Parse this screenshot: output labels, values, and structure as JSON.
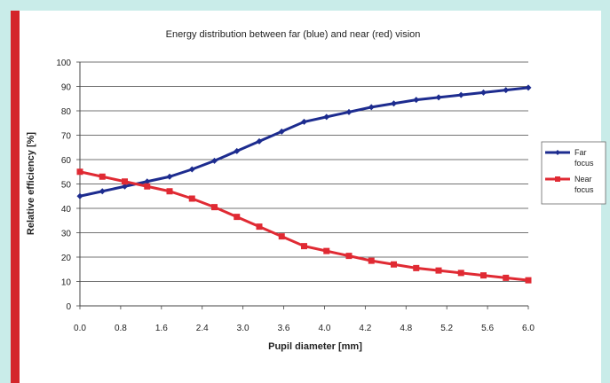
{
  "colors": {
    "background": "#c9ece9",
    "accent_bar": "#d4262b",
    "far": "#1d2c8f",
    "near": "#e02a33"
  },
  "chart_data": {
    "type": "line",
    "title": "Energy distribution between far (blue) and near (red) vision",
    "xlabel": "Pupil diameter [mm]",
    "ylabel": "Relative efficiency [%]",
    "xlim": [
      0.0,
      6.0
    ],
    "ylim": [
      0,
      100
    ],
    "xticks": [
      "0.0",
      "0.8",
      "1.6",
      "2.4",
      "3.0",
      "3.6",
      "4.0",
      "4.2",
      "4.8",
      "5.2",
      "5.6",
      "6.0"
    ],
    "yticks": [
      "0",
      "10",
      "20",
      "30",
      "40",
      "50",
      "60",
      "70",
      "80",
      "90",
      "100"
    ],
    "grid": "horizontal",
    "legend": "right",
    "x": [
      0.0,
      0.3,
      0.6,
      0.9,
      1.2,
      1.5,
      1.8,
      2.1,
      2.4,
      2.7,
      3.0,
      3.3,
      3.6,
      3.9,
      4.2,
      4.5,
      4.8,
      5.1,
      5.4,
      5.7,
      6.0
    ],
    "series": [
      {
        "name": "Far focus",
        "values": [
          45,
          47,
          49,
          51,
          53,
          56,
          59.5,
          63.5,
          67.5,
          71.5,
          75.5,
          77.5,
          79.5,
          81.5,
          83,
          84.5,
          85.5,
          86.5,
          87.5,
          88.5,
          89.5
        ]
      },
      {
        "name": "Near focus",
        "values": [
          55,
          53,
          51,
          49,
          47,
          44,
          40.5,
          36.5,
          32.5,
          28.5,
          24.5,
          22.5,
          20.5,
          18.5,
          17,
          15.5,
          14.5,
          13.5,
          12.5,
          11.5,
          10.5
        ]
      }
    ]
  }
}
